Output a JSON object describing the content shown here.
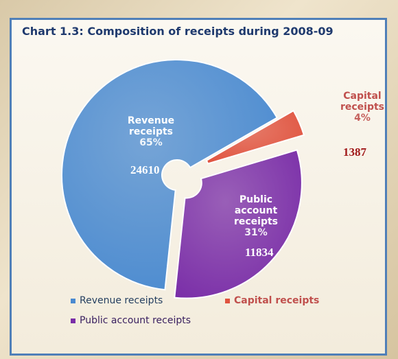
{
  "chart_data": {
    "type": "donut",
    "title": "Chart 1.3: Composition of receipts during 2008-09",
    "categories": [
      "Revenue receipts",
      "Capital receipts",
      "Public account receipts"
    ],
    "values": [
      24610,
      1387,
      11834
    ],
    "percent_labels": [
      "65%",
      "4%",
      "31%"
    ],
    "colors": [
      "#4a8ad0",
      "#e0533f",
      "#7a2ea8"
    ],
    "legend": "bottom"
  }
}
